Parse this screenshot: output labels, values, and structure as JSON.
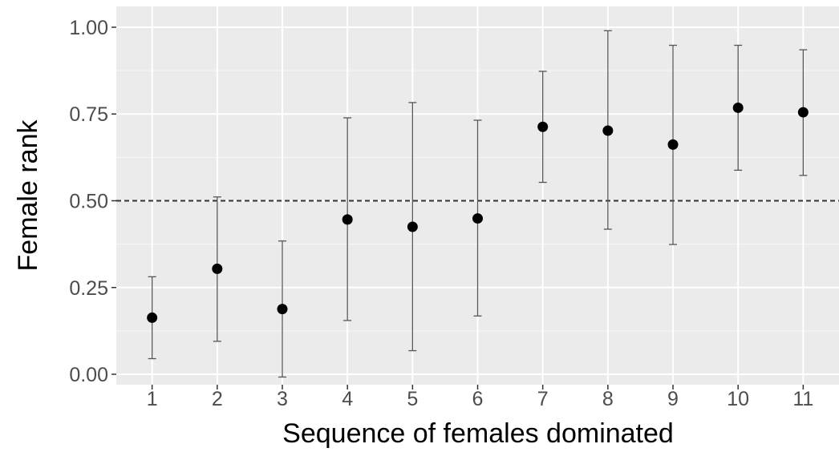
{
  "chart_data": {
    "type": "scatter",
    "title": "",
    "xlabel": "Sequence of females dominated",
    "ylabel": "Female rank",
    "x": [
      1,
      2,
      3,
      4,
      5,
      6,
      7,
      8,
      9,
      10,
      11
    ],
    "x_tick_labels": [
      "1",
      "2",
      "3",
      "4",
      "5",
      "6",
      "7",
      "8",
      "9",
      "10",
      "11"
    ],
    "y_ticks": [
      0,
      0.25,
      0.5,
      0.75,
      1.0
    ],
    "y_tick_labels": [
      "0.00",
      "0.25",
      "0.50",
      "0.75",
      "1.00"
    ],
    "xlim": [
      0.45,
      11.55
    ],
    "ylim": [
      -0.03,
      1.06
    ],
    "grid": true,
    "series": [
      {
        "values": [
          0.163,
          0.304,
          0.188,
          0.446,
          0.425,
          0.449,
          0.713,
          0.702,
          0.662,
          0.768,
          0.755
        ],
        "lower": [
          0.045,
          0.095,
          -0.008,
          0.155,
          0.068,
          0.168,
          0.553,
          0.418,
          0.374,
          0.588,
          0.573
        ],
        "upper": [
          0.281,
          0.511,
          0.384,
          0.739,
          0.783,
          0.732,
          0.873,
          0.99,
          0.948,
          0.948,
          0.935
        ]
      }
    ],
    "reference_line": {
      "y": 0.5,
      "style": "dashed"
    },
    "colors": {
      "panel": "#ebebeb",
      "grid": "#ffffff",
      "point": "#000000",
      "errorbar": "#555555",
      "tick_text": "#4d4d4d"
    }
  }
}
